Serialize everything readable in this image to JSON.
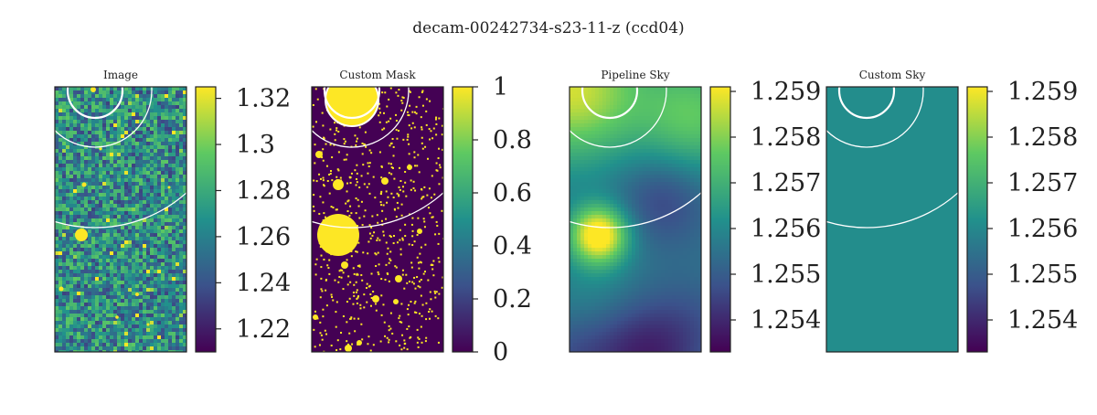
{
  "suptitle": "decam-00242734-s23-11-z (ccd04)",
  "colormap": "viridis",
  "viridis_stops": [
    "#440154",
    "#3b528b",
    "#21918c",
    "#5ec962",
    "#fde725"
  ],
  "circle_color": "#ffffff",
  "chart_data": [
    {
      "type": "heatmap",
      "title": "Image",
      "content": "noisy image with sources",
      "colorbar": {
        "range": [
          1.21,
          1.325
        ],
        "ticks": [
          1.22,
          1.24,
          1.26,
          1.28,
          1.3,
          1.32
        ],
        "tick_labels": [
          "1.22",
          "1.24",
          "1.26",
          "1.28",
          "1.3",
          "1.32"
        ]
      }
    },
    {
      "type": "heatmap",
      "title": "Custom Mask",
      "content": "binary mask of sources",
      "colorbar": {
        "range": [
          0,
          1
        ],
        "ticks": [
          0,
          0.2,
          0.4,
          0.6,
          0.8,
          1
        ],
        "tick_labels": [
          "0",
          "0.2",
          "0.4",
          "0.6",
          "0.8",
          "1"
        ]
      }
    },
    {
      "type": "heatmap",
      "title": "Pipeline Sky",
      "content": "smooth sky background",
      "colorbar": {
        "range": [
          1.2533,
          1.2591
        ],
        "ticks": [
          1.254,
          1.255,
          1.256,
          1.257,
          1.258,
          1.259
        ],
        "tick_labels": [
          "1.254",
          "1.255",
          "1.256",
          "1.257",
          "1.258",
          "1.259"
        ]
      }
    },
    {
      "type": "heatmap",
      "title": "Custom Sky",
      "content": "constant sky level",
      "constant_value": 1.2561,
      "colorbar": {
        "range": [
          1.2533,
          1.2591
        ],
        "ticks": [
          1.254,
          1.255,
          1.256,
          1.257,
          1.258,
          1.259
        ],
        "tick_labels": [
          "1.254",
          "1.255",
          "1.256",
          "1.257",
          "1.258",
          "1.259"
        ]
      }
    }
  ]
}
